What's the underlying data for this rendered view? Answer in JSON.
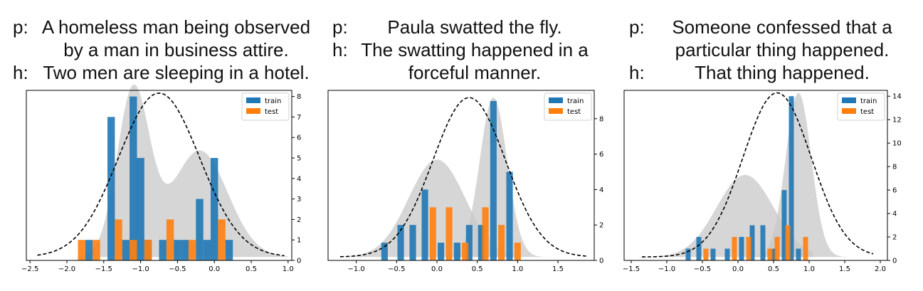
{
  "colors": {
    "train": "#1f77b4",
    "test": "#ff7f0e",
    "density_fill": "#c8c8c8",
    "prior_curve": "#000000"
  },
  "panels": [
    {
      "caption": [
        {
          "tag": "p:",
          "text": "A homeless man being observed"
        },
        {
          "tag": "",
          "text": "by a man in business attire."
        },
        {
          "tag": "h:",
          "text": "Two men are sleeping in a hotel."
        }
      ]
    },
    {
      "caption": [
        {
          "tag": "p:",
          "text": "Paula swatted the fly."
        },
        {
          "tag": "h:",
          "text": "The swatting happened in a"
        },
        {
          "tag": "",
          "text": "forceful manner."
        }
      ]
    },
    {
      "caption": [
        {
          "tag": "p:",
          "text": "Someone confessed that a"
        },
        {
          "tag": "",
          "text": "particular thing happened."
        },
        {
          "tag": "h:",
          "text": "That thing happened."
        }
      ]
    }
  ],
  "chart_data": [
    {
      "type": "bar",
      "legend": {
        "entries": [
          "train",
          "test"
        ],
        "placement": "top-right"
      },
      "xlim": [
        -2.55,
        1.05
      ],
      "ylim": [
        0,
        8.3
      ],
      "xticks": [
        -2.5,
        -2.0,
        -1.5,
        -1.0,
        -0.5,
        0.0,
        0.5,
        1.0
      ],
      "xtick_labels": [
        "−2.5",
        "−2.0",
        "−1.5",
        "−1.0",
        "−0.5",
        "0.0",
        "0.5",
        "1.0"
      ],
      "yticks": [
        0,
        1,
        2,
        3,
        4,
        5,
        6,
        7,
        8
      ],
      "ytick_labels": [
        "0",
        "1",
        "2",
        "3",
        "4",
        "5",
        "6",
        "7",
        "8"
      ],
      "y_axis_side": "right",
      "series": [
        {
          "name": "train",
          "bar_width": 0.1,
          "x": [
            -1.7,
            -1.4,
            -1.2,
            -1.1,
            -1.0,
            -0.9,
            -0.7,
            -0.5,
            -0.4,
            -0.2,
            -0.1,
            0.0,
            0.2
          ],
          "values": [
            1,
            7,
            1,
            8,
            5,
            1,
            1,
            1,
            1,
            3,
            1,
            5,
            1
          ]
        },
        {
          "name": "test",
          "bar_width": 0.1,
          "x": [
            -1.8,
            -1.6,
            -1.3,
            -1.1,
            -0.9,
            -0.6,
            -0.3,
            0.1
          ],
          "values": [
            1,
            1,
            2,
            1,
            1,
            2,
            1,
            2
          ]
        }
      ],
      "density_areas": [
        {
          "range": [
            -1.8,
            1.0
          ],
          "components": [
            {
              "mu": -1.1,
              "sigma": 0.22,
              "height": 8.1
            },
            {
              "mu": -0.2,
              "sigma": 0.38,
              "height": 5.2
            }
          ]
        }
      ],
      "prior_curve": {
        "range": [
          -2.4,
          0.95
        ],
        "mu": -0.75,
        "sigma": 0.55,
        "height": 8.0
      }
    },
    {
      "type": "bar",
      "legend": {
        "entries": [
          "train",
          "test"
        ],
        "placement": "top-right"
      },
      "xlim": [
        -1.35,
        1.95
      ],
      "ylim": [
        0,
        9.6
      ],
      "xticks": [
        -1.0,
        -0.5,
        0.0,
        0.5,
        1.0,
        1.5
      ],
      "xtick_labels": [
        "−1.0",
        "−0.5",
        "0.0",
        "0.5",
        "1.0",
        "1.5"
      ],
      "yticks": [
        0,
        2,
        4,
        6,
        8
      ],
      "ytick_labels": [
        "0",
        "2",
        "4",
        "6",
        "8"
      ],
      "y_axis_side": "right",
      "series": [
        {
          "name": "train",
          "bar_width": 0.08,
          "x": [
            -0.65,
            -0.45,
            -0.3,
            -0.15,
            0.05,
            0.25,
            0.4,
            0.55,
            0.7,
            0.9
          ],
          "values": [
            1,
            2,
            2,
            4,
            1,
            1,
            2,
            2,
            9,
            5
          ]
        },
        {
          "name": "test",
          "bar_width": 0.08,
          "x": [
            -0.05,
            0.15,
            0.35,
            0.6,
            0.8,
            1.0
          ],
          "values": [
            3,
            3,
            1,
            3,
            2,
            1
          ]
        }
      ],
      "density_areas": [
        {
          "range": [
            -1.2,
            0.95
          ],
          "components": [
            {
              "mu": 0.0,
              "sigma": 0.35,
              "height": 5.5
            }
          ]
        },
        {
          "range": [
            0.2,
            1.45
          ],
          "components": [
            {
              "mu": 0.7,
              "sigma": 0.17,
              "height": 9.0
            }
          ]
        }
      ],
      "prior_curve": {
        "range": [
          -1.2,
          1.85
        ],
        "mu": 0.4,
        "sigma": 0.45,
        "height": 9.0
      }
    },
    {
      "type": "bar",
      "legend": {
        "entries": [
          "train",
          "test"
        ],
        "placement": "top-right"
      },
      "xlim": [
        -1.6,
        2.1
      ],
      "ylim": [
        0,
        14.5
      ],
      "xticks": [
        -1.5,
        -1.0,
        -0.5,
        0.0,
        0.5,
        1.0,
        1.5,
        2.0
      ],
      "xtick_labels": [
        "−1.5",
        "−1.0",
        "−0.5",
        "0.0",
        "0.5",
        "1.0",
        "1.5",
        "2.0"
      ],
      "yticks": [
        0,
        2,
        4,
        6,
        8,
        10,
        12,
        14
      ],
      "ytick_labels": [
        "0",
        "2",
        "4",
        "6",
        "8",
        "10",
        "12",
        "14"
      ],
      "y_axis_side": "right",
      "series": [
        {
          "name": "train",
          "bar_width": 0.07,
          "x": [
            -0.7,
            -0.55,
            -0.35,
            -0.15,
            0.05,
            0.2,
            0.35,
            0.5,
            0.65,
            0.75,
            0.85
          ],
          "values": [
            1,
            2,
            1,
            1,
            2,
            3,
            3,
            1,
            6,
            14,
            1
          ]
        },
        {
          "name": "test",
          "bar_width": 0.07,
          "x": [
            -0.45,
            -0.05,
            0.15,
            0.45,
            0.55,
            0.7,
            0.95
          ],
          "values": [
            1,
            2,
            2,
            1,
            2,
            3,
            2
          ]
        }
      ],
      "density_areas": [
        {
          "range": [
            -1.4,
            1.05
          ],
          "components": [
            {
              "mu": 0.1,
              "sigma": 0.4,
              "height": 7.0
            }
          ]
        },
        {
          "range": [
            0.2,
            1.6
          ],
          "components": [
            {
              "mu": 0.85,
              "sigma": 0.18,
              "height": 14.0
            }
          ]
        }
      ],
      "prior_curve": {
        "range": [
          -1.35,
          1.9
        ],
        "mu": 0.55,
        "sigma": 0.48,
        "height": 14.0
      }
    }
  ]
}
